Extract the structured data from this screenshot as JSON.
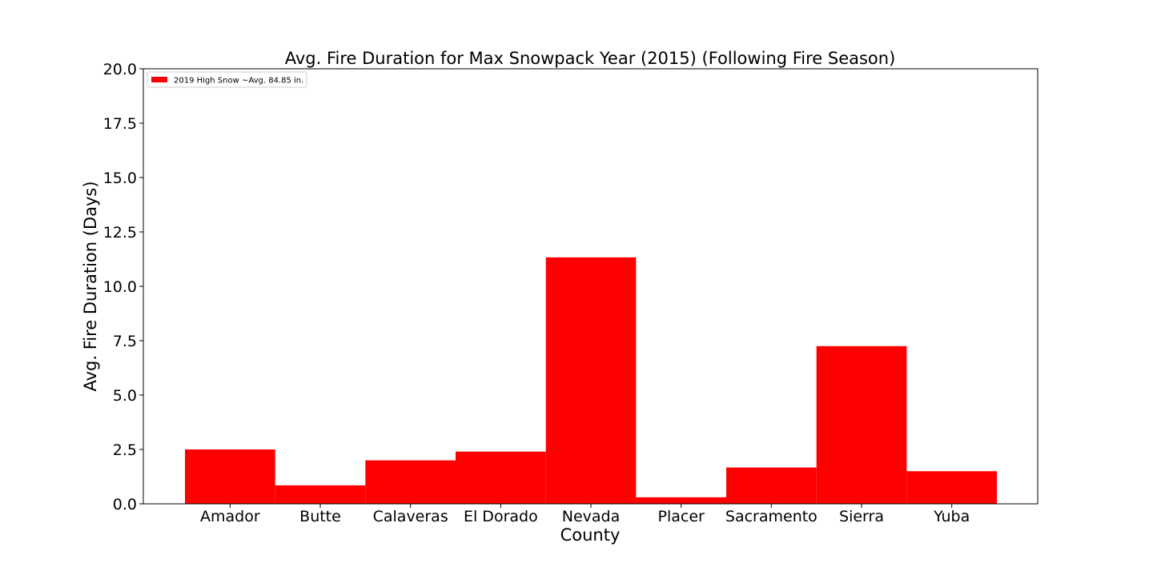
{
  "chart_data": {
    "type": "bar",
    "title": "Avg. Fire Duration for Max Snowpack Year (2015) (Following Fire Season)",
    "xlabel": "County",
    "ylabel": "Avg. Fire Duration (Days)",
    "categories": [
      "Amador",
      "Butte",
      "Calaveras",
      "El Dorado",
      "Nevada",
      "Placer",
      "Sacramento",
      "Sierra",
      "Yuba"
    ],
    "series": [
      {
        "name": "2019 High Snow ~Avg. 84.85 in.",
        "color": "#ff0000",
        "values": [
          2.5,
          0.85,
          2.0,
          2.4,
          11.33,
          0.3,
          1.67,
          7.25,
          1.5
        ]
      }
    ],
    "ylim": [
      0,
      20
    ],
    "yticks": [
      "0.0",
      "2.5",
      "5.0",
      "7.5",
      "10.0",
      "12.5",
      "15.0",
      "17.5",
      "20.0"
    ],
    "grid": false,
    "legend_position": "upper-left"
  }
}
